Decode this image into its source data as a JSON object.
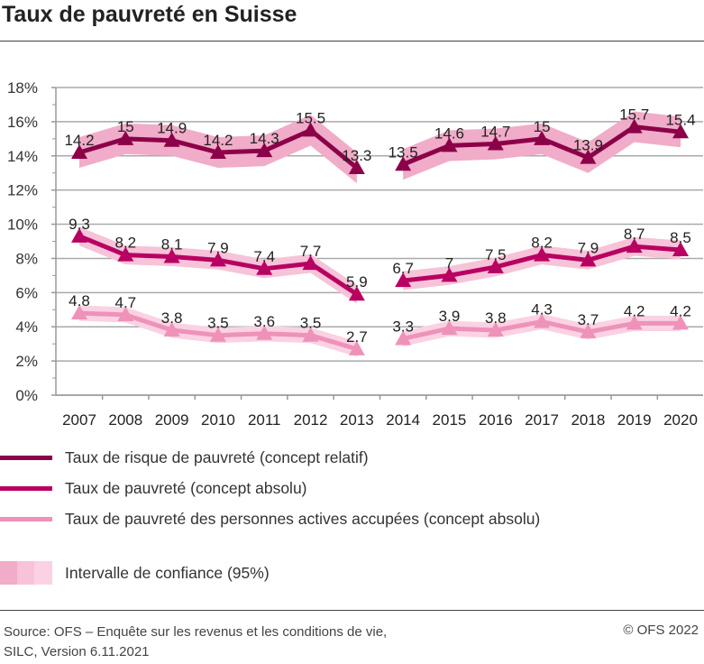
{
  "title": "Taux de pauvreté en Suisse",
  "chart_data": {
    "type": "line",
    "title": "Taux de pauvreté en Suisse",
    "x": [
      2007,
      2008,
      2009,
      2010,
      2011,
      2012,
      2013,
      2014,
      2015,
      2016,
      2017,
      2018,
      2019,
      2020
    ],
    "break_after": 2013,
    "ylim": [
      0,
      18
    ],
    "yticks": [
      0,
      2,
      4,
      6,
      8,
      10,
      12,
      14,
      16,
      18
    ],
    "ytick_labels": [
      "0%",
      "2%",
      "4%",
      "6%",
      "8%",
      "10%",
      "12%",
      "14%",
      "16%",
      "18%"
    ],
    "grid": true,
    "legend_placement": "bottom",
    "series": [
      {
        "name": "Taux de risque de pauvreté (concept relatif)",
        "color": "#8b0049",
        "band_color": "#f0acc8",
        "ci_halfwidth": 0.9,
        "values": [
          14.2,
          15,
          14.9,
          14.2,
          14.3,
          15.5,
          13.3,
          13.5,
          14.6,
          14.7,
          15,
          13.9,
          15.7,
          15.4
        ]
      },
      {
        "name": "Taux de pauvreté (concept absolu)",
        "color": "#b80062",
        "band_color": "#f6c3d8",
        "ci_halfwidth": 0.55,
        "values": [
          9.3,
          8.2,
          8.1,
          7.9,
          7.4,
          7.7,
          5.9,
          6.7,
          7,
          7.5,
          8.2,
          7.9,
          8.7,
          8.5
        ]
      },
      {
        "name": "Taux de pauvreté des personnes actives accupées (concept absolu)",
        "color": "#ee92b9",
        "band_color": "#fad2e3",
        "ci_halfwidth": 0.45,
        "values": [
          4.8,
          4.7,
          3.8,
          3.5,
          3.6,
          3.5,
          2.7,
          3.3,
          3.9,
          3.8,
          4.3,
          3.7,
          4.2,
          4.2
        ]
      }
    ],
    "ci_legend": "Intervalle de confiance (95%)",
    "ci_legend_colors": [
      "#f0acc8",
      "#f6c3d8",
      "#fad2e3"
    ]
  },
  "footer": {
    "source_line1": "Source: OFS – Enquête sur les revenus et les conditions de vie,",
    "source_line2": "SILC, Version 6.11.2021",
    "copyright": "© OFS 2022"
  }
}
